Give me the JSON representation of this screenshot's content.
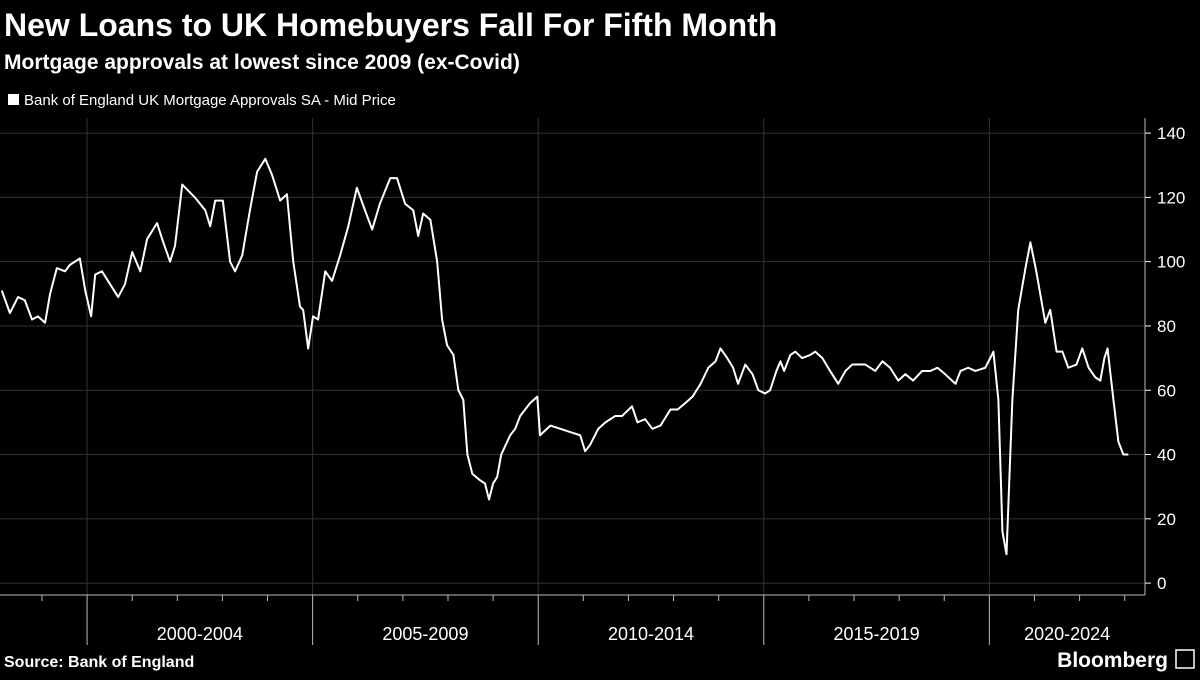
{
  "chart_data": {
    "type": "line",
    "title": "New Loans to UK Homebuyers Fall For Fifth Month",
    "subtitle": "Mortgage approvals at lowest since 2009 (ex-Covid)",
    "source": "Source: Bank of England",
    "brand": "Bloomberg",
    "legend_position": "top-left",
    "grid": true,
    "xlim": [
      1998.07,
      2023.45
    ],
    "ylim": [
      -3.7,
      144.7
    ],
    "yticks": [
      0,
      20,
      40,
      60,
      80,
      100,
      120,
      140
    ],
    "xticks": [
      2000,
      2005,
      2010,
      2015,
      2020,
      2025
    ],
    "x_minor_ticks": [
      1999,
      2001,
      2002,
      2003,
      2004,
      2006,
      2007,
      2008,
      2009,
      2011,
      2012,
      2013,
      2014,
      2016,
      2017,
      2018,
      2019,
      2021,
      2022,
      2023
    ],
    "period_labels": [
      "2000-2004",
      "2005-2009",
      "2010-2014",
      "2015-2019",
      "2020-2024"
    ],
    "x": [
      1998.11,
      1998.29,
      1998.47,
      1998.62,
      1998.78,
      1998.91,
      1999.07,
      1999.18,
      1999.33,
      1999.51,
      1999.62,
      1999.84,
      1999.96,
      2000.09,
      2000.18,
      2000.33,
      2000.51,
      2000.69,
      2000.84,
      2001.0,
      2001.18,
      2001.33,
      2001.55,
      2001.69,
      2001.84,
      2001.95,
      2002.11,
      2002.39,
      2002.62,
      2002.73,
      2002.84,
      2003.01,
      2003.17,
      2003.28,
      2003.44,
      2003.61,
      2003.77,
      2003.95,
      2004.1,
      2004.28,
      2004.43,
      2004.57,
      2004.72,
      2004.79,
      2004.9,
      2005.01,
      2005.12,
      2005.28,
      2005.43,
      2005.61,
      2005.79,
      2005.98,
      2006.16,
      2006.32,
      2006.49,
      2006.72,
      2006.87,
      2007.05,
      2007.23,
      2007.34,
      2007.45,
      2007.61,
      2007.76,
      2007.87,
      2007.98,
      2008.12,
      2008.23,
      2008.34,
      2008.43,
      2008.54,
      2008.71,
      2008.82,
      2008.91,
      2009.0,
      2009.09,
      2009.18,
      2009.38,
      2009.49,
      2009.6,
      2009.71,
      2009.82,
      2009.98,
      2010.04,
      2010.27,
      2010.49,
      2010.71,
      2010.93,
      2011.04,
      2011.15,
      2011.33,
      2011.49,
      2011.71,
      2011.86,
      2012.08,
      2012.2,
      2012.37,
      2012.53,
      2012.71,
      2012.93,
      2013.09,
      2013.26,
      2013.42,
      2013.6,
      2013.77,
      2013.93,
      2014.04,
      2014.19,
      2014.32,
      2014.43,
      2014.59,
      2014.75,
      2014.88,
      2015.03,
      2015.14,
      2015.28,
      2015.37,
      2015.45,
      2015.59,
      2015.7,
      2015.85,
      2016.03,
      2016.14,
      2016.3,
      2016.47,
      2016.65,
      2016.81,
      2016.96,
      2017.25,
      2017.47,
      2017.63,
      2017.8,
      2017.98,
      2018.14,
      2018.31,
      2018.51,
      2018.69,
      2018.85,
      2019.02,
      2019.25,
      2019.36,
      2019.53,
      2019.69,
      2019.91,
      2020.09,
      2020.2,
      2020.29,
      2020.38,
      2020.51,
      2020.64,
      2020.8,
      2020.91,
      2021.04,
      2021.24,
      2021.35,
      2021.49,
      2021.62,
      2021.75,
      2021.93,
      2022.06,
      2022.2,
      2022.35,
      2022.46,
      2022.55,
      2022.62,
      2022.75,
      2022.86,
      2022.97,
      2023.08
    ],
    "series": [
      {
        "name": "Bank of England UK Mortgage Approvals SA - Mid Price",
        "color": "#ffffff",
        "values": [
          91,
          84,
          89,
          88,
          82,
          83,
          81,
          90,
          98,
          97,
          99,
          101,
          91,
          83,
          96,
          97,
          93,
          89,
          93,
          103,
          97,
          107,
          112,
          106,
          100,
          105,
          124,
          120,
          116,
          111,
          119,
          119,
          100,
          97,
          102,
          116,
          128,
          132,
          127,
          119,
          121,
          100,
          86,
          85,
          73,
          83,
          82,
          97,
          94,
          102,
          111,
          123,
          116,
          110,
          118,
          126,
          126,
          118,
          116,
          108,
          115,
          113,
          100,
          82,
          74,
          71,
          60,
          57,
          40,
          34,
          32,
          31,
          26,
          31,
          33,
          40,
          46,
          48,
          52,
          54,
          56,
          58,
          46,
          49,
          48,
          47,
          46,
          41,
          43,
          48,
          50,
          52,
          52,
          55,
          50,
          51,
          48,
          49,
          54,
          54,
          56,
          58,
          62,
          67,
          69,
          73,
          70,
          67,
          62,
          68,
          65,
          60,
          59,
          60,
          66,
          69,
          66,
          71,
          72,
          70,
          71,
          72,
          70,
          66,
          62,
          66,
          68,
          68,
          66,
          69,
          67,
          63,
          65,
          63,
          66,
          66,
          67,
          65,
          62,
          66,
          67,
          66,
          67,
          72,
          57,
          16,
          9,
          57,
          85,
          98,
          106,
          97,
          81,
          85,
          72,
          72,
          67,
          68,
          73,
          67,
          64,
          63,
          70,
          73,
          57,
          44,
          40,
          40
        ]
      }
    ]
  }
}
